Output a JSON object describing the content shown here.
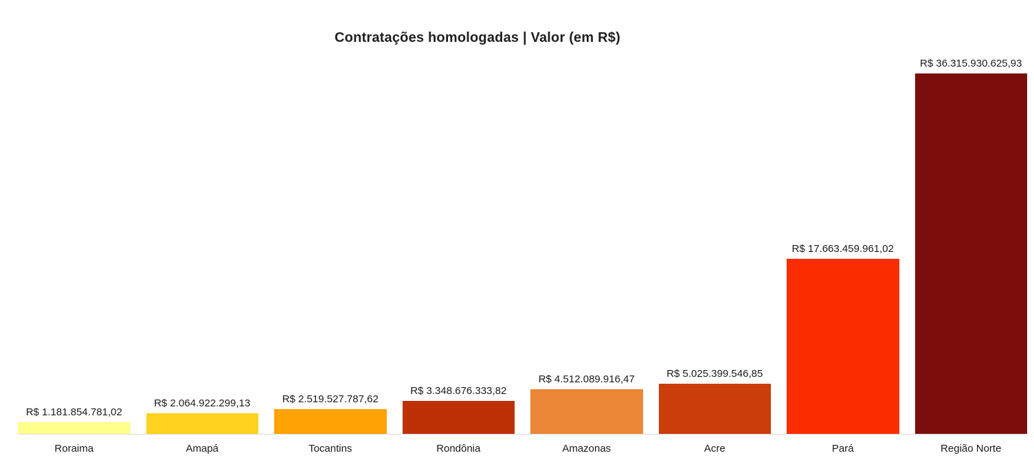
{
  "chart_data": {
    "type": "bar",
    "title": "Contratações homologadas | Valor (em R$)",
    "categories": [
      "Roraima",
      "Amapá",
      "Tocantins",
      "Rondônia",
      "Amazonas",
      "Acre",
      "Pará",
      "Região Norte"
    ],
    "values": [
      1181854781.02,
      2064922299.13,
      2519527787.62,
      3348676333.82,
      4512089916.47,
      5025399546.85,
      17663459961.02,
      36315930625.93
    ],
    "value_labels": [
      "R$ 1.181.854.781,02",
      "R$ 2.064.922.299,13",
      "R$ 2.519.527.787,62",
      "R$ 3.348.676.333,82",
      "R$ 4.512.089.916,47",
      "R$ 5.025.399.546,85",
      "R$ 17.663.459.961,02",
      "R$ 36.315.930.625,93"
    ],
    "colors": [
      "#FFFF8C",
      "#FFD21F",
      "#FFA305",
      "#BE3106",
      "#EB8736",
      "#CB3D09",
      "#FB2C00",
      "#7C0D0D"
    ],
    "xlabel": "",
    "ylabel": "",
    "ylim": [
      0,
      36315930625.93
    ],
    "grid": false,
    "legend": "none",
    "axis_line_color": "#d9d9d9",
    "currency": "R$"
  }
}
